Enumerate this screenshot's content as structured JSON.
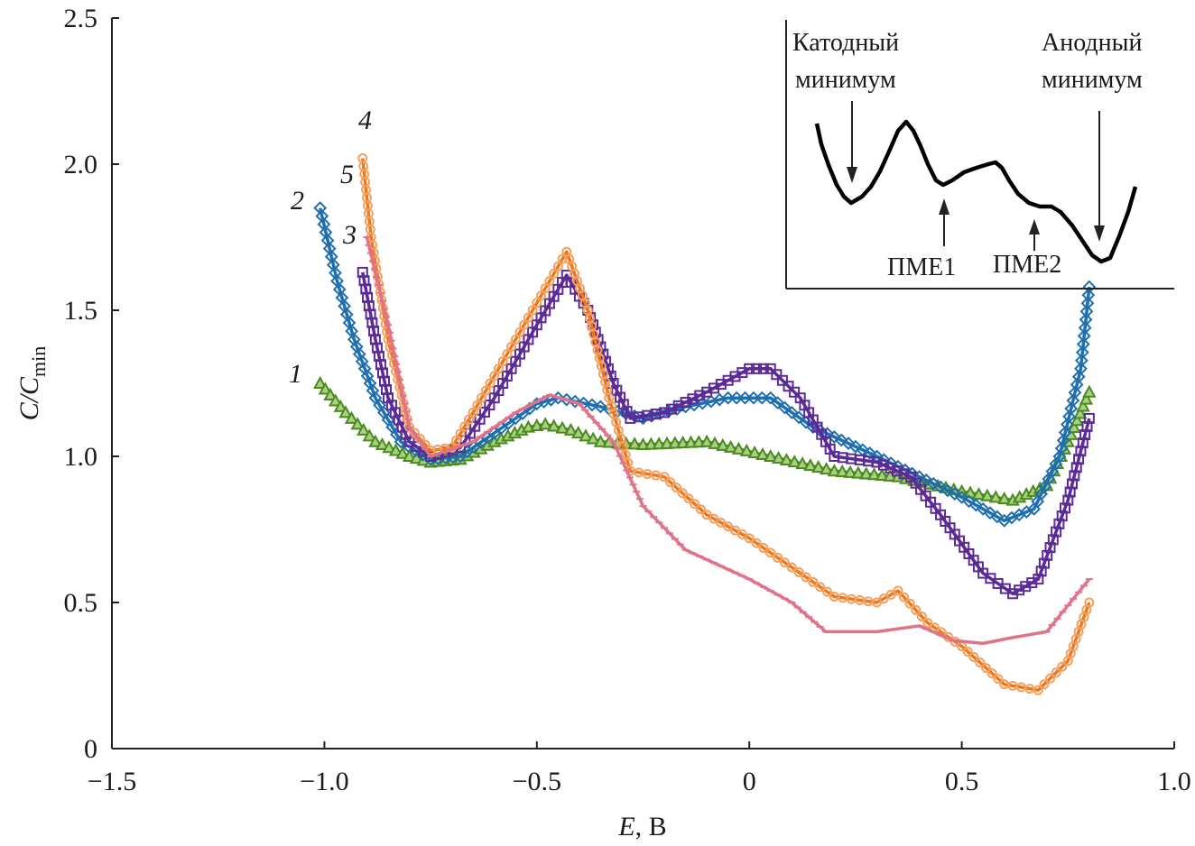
{
  "chart_data": {
    "type": "line",
    "xlabel": "E, В",
    "xlabel_parts": {
      "var": "E",
      "unit": ", В"
    },
    "ylabel": "C/Cmin",
    "ylabel_parts": {
      "var": "C/C",
      "sub": "min"
    },
    "xlim": [
      -1.5,
      1.0
    ],
    "ylim": [
      0,
      2.5
    ],
    "xticks": [
      "−1.5",
      "−1.0",
      "−0.5",
      "0",
      "0.5",
      "1.0"
    ],
    "xtick_values": [
      -1.5,
      -1.0,
      -0.5,
      0,
      0.5,
      1.0
    ],
    "yticks": [
      "0",
      "0.5",
      "1.0",
      "1.5",
      "2.0",
      "2.5"
    ],
    "ytick_values": [
      0,
      0.5,
      1.0,
      1.5,
      2.0,
      2.5
    ],
    "grid": false,
    "series": [
      {
        "name": "1",
        "color": "#4a8a1e",
        "marker": "triangle",
        "x": [
          -1.01,
          -0.95,
          -0.88,
          -0.8,
          -0.75,
          -0.68,
          -0.6,
          -0.52,
          -0.48,
          -0.42,
          -0.35,
          -0.25,
          -0.1,
          0.05,
          0.2,
          0.35,
          0.5,
          0.62,
          0.7,
          0.75,
          0.8
        ],
        "y": [
          1.25,
          1.15,
          1.05,
          1.0,
          0.98,
          0.99,
          1.05,
          1.1,
          1.11,
          1.09,
          1.05,
          1.04,
          1.05,
          1.0,
          0.95,
          0.93,
          0.88,
          0.85,
          0.9,
          1.05,
          1.22
        ]
      },
      {
        "name": "2",
        "color": "#1f6fb0",
        "marker": "diamond",
        "x": [
          -1.01,
          -0.97,
          -0.93,
          -0.88,
          -0.82,
          -0.75,
          -0.68,
          -0.6,
          -0.5,
          -0.45,
          -0.35,
          -0.25,
          -0.15,
          -0.05,
          0.05,
          0.15,
          0.3,
          0.4,
          0.5,
          0.6,
          0.67,
          0.73,
          0.78,
          0.8
        ],
        "y": [
          1.85,
          1.6,
          1.4,
          1.2,
          1.05,
          0.99,
          1.0,
          1.08,
          1.18,
          1.2,
          1.17,
          1.13,
          1.17,
          1.2,
          1.2,
          1.1,
          1.0,
          0.93,
          0.86,
          0.78,
          0.82,
          1.0,
          1.3,
          1.58
        ]
      },
      {
        "name": "3",
        "color": "#5b2a96",
        "marker": "square",
        "x": [
          -0.91,
          -0.88,
          -0.85,
          -0.8,
          -0.75,
          -0.68,
          -0.6,
          -0.5,
          -0.43,
          -0.38,
          -0.32,
          -0.28,
          -0.2,
          -0.1,
          0.0,
          0.05,
          0.12,
          0.2,
          0.3,
          0.38,
          0.45,
          0.55,
          0.62,
          0.68,
          0.75,
          0.8
        ],
        "y": [
          1.63,
          1.4,
          1.2,
          1.05,
          1.0,
          1.03,
          1.2,
          1.45,
          1.62,
          1.5,
          1.25,
          1.13,
          1.15,
          1.22,
          1.3,
          1.3,
          1.2,
          1.0,
          0.98,
          0.93,
          0.8,
          0.6,
          0.53,
          0.58,
          0.85,
          1.13
        ]
      },
      {
        "name": "4",
        "color": "#f07818",
        "marker": "circle",
        "x": [
          -0.91,
          -0.89,
          -0.85,
          -0.8,
          -0.75,
          -0.7,
          -0.65,
          -0.55,
          -0.43,
          -0.38,
          -0.33,
          -0.28,
          -0.2,
          -0.1,
          0.0,
          0.1,
          0.2,
          0.3,
          0.35,
          0.42,
          0.5,
          0.6,
          0.68,
          0.75,
          0.8
        ],
        "y": [
          2.02,
          1.75,
          1.4,
          1.1,
          1.02,
          1.03,
          1.15,
          1.4,
          1.7,
          1.5,
          1.2,
          0.95,
          0.93,
          0.8,
          0.72,
          0.62,
          0.52,
          0.5,
          0.54,
          0.43,
          0.35,
          0.22,
          0.2,
          0.3,
          0.5
        ]
      },
      {
        "name": "5",
        "color": "#e0738a",
        "marker": "dash",
        "x": [
          -0.9,
          -0.85,
          -0.8,
          -0.75,
          -0.65,
          -0.55,
          -0.47,
          -0.4,
          -0.32,
          -0.25,
          -0.15,
          0.0,
          0.1,
          0.18,
          0.3,
          0.4,
          0.48,
          0.55,
          0.62,
          0.7,
          0.8
        ],
        "y": [
          1.75,
          1.45,
          1.1,
          1.0,
          1.05,
          1.15,
          1.21,
          1.18,
          1.05,
          0.83,
          0.68,
          0.58,
          0.5,
          0.4,
          0.4,
          0.42,
          0.37,
          0.36,
          0.38,
          0.4,
          0.58
        ]
      }
    ],
    "curve_labels": [
      "1",
      "2",
      "3",
      "4",
      "5"
    ],
    "inset": {
      "label_cathodic": [
        "Катодный",
        "минимум"
      ],
      "label_anodic": [
        "Анодный",
        "минимум"
      ],
      "label_pme1": "ПМЕ1",
      "label_pme2": "ПМЕ2"
    }
  }
}
